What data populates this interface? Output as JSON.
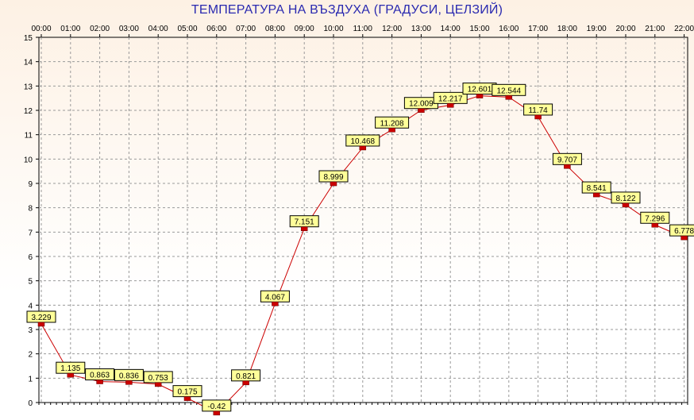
{
  "chart_data": {
    "type": "line",
    "title": "ТЕМПЕРАТУРА НА ВЪЗДУХА  (ГРАДУСИ, ЦЕЛЗИЙ)",
    "x": [
      "00:00",
      "01:00",
      "02:00",
      "03:00",
      "04:00",
      "05:00",
      "06:00",
      "07:00",
      "08:00",
      "09:00",
      "10:00",
      "11:00",
      "12:00",
      "13:00",
      "14:00",
      "15:00",
      "16:00",
      "17:00",
      "18:00",
      "19:00",
      "20:00",
      "21:00",
      "22:00"
    ],
    "series": [
      {
        "values": [
          3.229,
          1.135,
          0.863,
          0.836,
          0.753,
          0.175,
          -0.42,
          0.821,
          4.067,
          7.151,
          8.999,
          10.468,
          11.208,
          12.009,
          12.217,
          12.601,
          12.544,
          11.74,
          9.707,
          8.541,
          8.122,
          7.296,
          6.778
        ],
        "labels": [
          "3.229",
          "1.135",
          "0.863",
          "0.836",
          "0.753",
          "0.175",
          "-0.42",
          "0.821",
          "4.067",
          "7.151",
          "8.999",
          "10.468",
          "11.208",
          "12.009",
          "12.217",
          "12.601",
          "12.544",
          "11.74",
          "9.707",
          "8.541",
          "8.122",
          "7.296",
          "6.778"
        ]
      }
    ],
    "ylim": [
      0,
      15
    ],
    "y_ticks": [
      "0",
      "1",
      "2",
      "3",
      "4",
      "5",
      "6",
      "7",
      "8",
      "9",
      "10",
      "11",
      "12",
      "13",
      "14",
      "15"
    ],
    "x_axis_position": "top",
    "grid": true,
    "colors": {
      "line": "#cc0000",
      "marker": "#cc0000",
      "label_fill": "#ffff99",
      "title": "#2a2ab0",
      "grid": "#9a9a9a"
    }
  }
}
